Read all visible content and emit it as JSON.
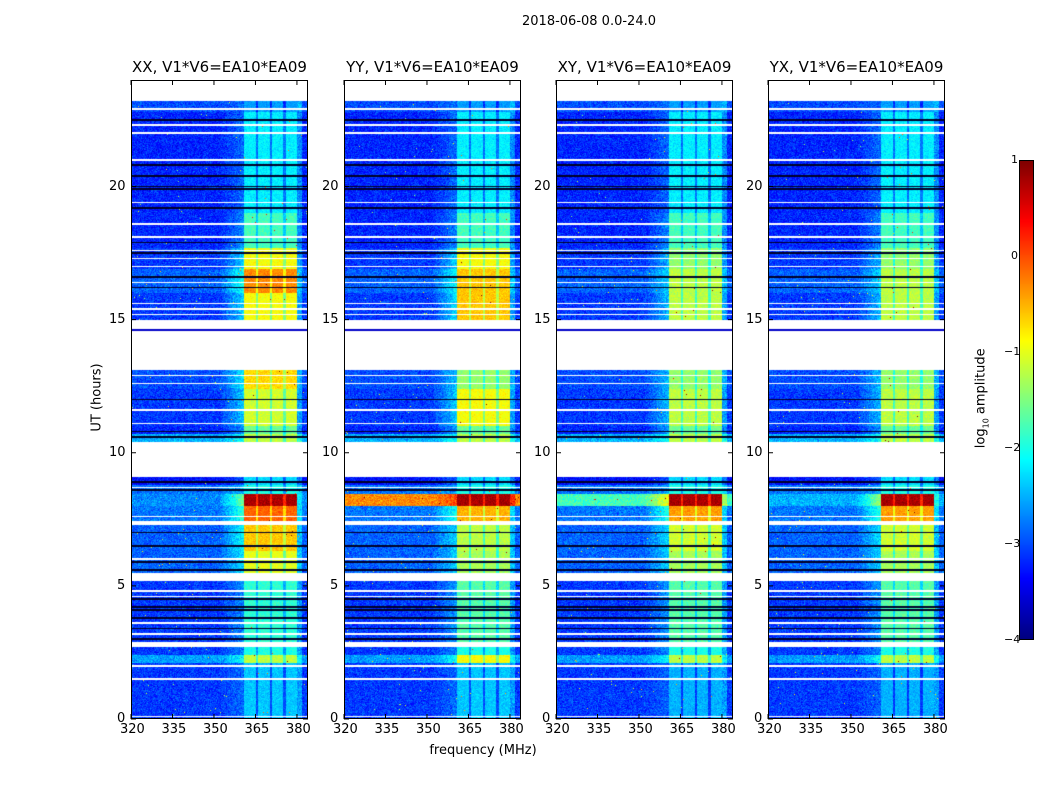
{
  "figure_title": "2018-06-08 0.0-24.0",
  "chart_data": {
    "type": "heatmap",
    "title": "2018-06-08 0.0-24.0",
    "xlabel": "frequency (MHz)",
    "ylabel": "UT (hours)",
    "xlim": [
      320,
      384
    ],
    "ylim": [
      0,
      24
    ],
    "xticks": [
      320,
      335,
      350,
      365,
      380
    ],
    "yticks": [
      0,
      5,
      10,
      15,
      20
    ],
    "colorbar": {
      "label_prefix": "log",
      "label_sub": "10",
      "label_suffix": " amplitude",
      "range": [
        -4,
        1
      ],
      "ticks": [
        1,
        0,
        -1,
        -2,
        -3,
        -4
      ],
      "colormap": "jet"
    },
    "panels": [
      {
        "title": "XX, V1*V6=EA10*EA09",
        "idx": 0
      },
      {
        "title": "YY, V1*V6=EA10*EA09",
        "idx": 1
      },
      {
        "title": "XY, V1*V6=EA10*EA09",
        "idx": 2
      },
      {
        "title": "YX, V1*V6=EA10*EA09",
        "idx": 3
      }
    ],
    "band_mhz": [
      361,
      380
    ],
    "band_gaps_mhz": [
      365.6,
      370.6,
      375.6
    ],
    "segments_hours": [
      {
        "t": [
          0,
          2.1
        ],
        "bg": -3.1,
        "band": [
          -2.4,
          -2.4,
          -2.5,
          -2.5
        ]
      },
      {
        "t": [
          2.1,
          2.4
        ],
        "bg": -2.6,
        "band": [
          -1.2,
          -0.9,
          -1.2,
          -1.2
        ]
      },
      {
        "t": [
          2.4,
          2.7
        ],
        "bg": -3.1,
        "band": [
          -2.0,
          -2.0,
          -2.0,
          -2.0
        ]
      },
      {
        "t": [
          2.7,
          2.9
        ],
        "blank": true
      },
      {
        "t": [
          2.9,
          5.2
        ],
        "bg": -3.1,
        "band": [
          -1.9,
          -1.7,
          -1.7,
          -1.7
        ]
      },
      {
        "t": [
          5.2,
          5.5
        ],
        "blank": true
      },
      {
        "t": [
          5.5,
          6.3
        ],
        "bg": -2.9,
        "band": [
          -1.0,
          -1.3,
          -1.3,
          -1.3
        ]
      },
      {
        "t": [
          6.3,
          7.3
        ],
        "bg": -2.9,
        "band": [
          -0.6,
          -1.2,
          -1.1,
          -1.1
        ]
      },
      {
        "t": [
          7.3,
          7.45
        ],
        "blank": true
      },
      {
        "t": [
          7.45,
          8.0
        ],
        "bg": -2.8,
        "band": [
          -0.1,
          -0.5,
          -0.4,
          -0.4
        ]
      },
      {
        "t": [
          8.0,
          8.45
        ],
        "bg": -2.8,
        "bg_override": [
          -2.7,
          -0.3,
          -1.8,
          -2.5
        ],
        "band": [
          0.8,
          0.8,
          0.8,
          0.8
        ]
      },
      {
        "t": [
          8.45,
          8.8
        ],
        "bg": -2.8,
        "band": [
          -2.0,
          -2.0,
          -2.0,
          -2.0
        ]
      },
      {
        "t": [
          8.8,
          9.1
        ],
        "bg": -3.3,
        "band": [
          -2.3,
          -2.3,
          -2.3,
          -2.3
        ]
      },
      {
        "t": [
          9.1,
          10.4
        ],
        "blank": true
      },
      {
        "t": [
          10.4,
          10.7
        ],
        "bg": -2.5,
        "band": [
          -1.2,
          -1.2,
          -1.2,
          -1.2
        ]
      },
      {
        "t": [
          10.7,
          11.0
        ],
        "bg": -3.2,
        "band": [
          -1.6,
          -1.6,
          -1.6,
          -1.6
        ]
      },
      {
        "t": [
          11.0,
          12.4
        ],
        "bg": -3.1,
        "band": [
          -1.1,
          -0.9,
          -1.2,
          -1.2
        ]
      },
      {
        "t": [
          12.4,
          13.1
        ],
        "bg": -3.0,
        "band": [
          -0.7,
          -1.4,
          -1.4,
          -1.4
        ]
      },
      {
        "t": [
          13.1,
          15.0
        ],
        "blank": true
      },
      {
        "t": [
          15.0,
          16.0
        ],
        "bg": -3.1,
        "band": [
          -0.9,
          -0.6,
          -1.2,
          -1.2
        ]
      },
      {
        "t": [
          16.0,
          16.9
        ],
        "bg": -2.9,
        "band": [
          -0.3,
          -0.6,
          -1.2,
          -1.2
        ]
      },
      {
        "t": [
          16.9,
          17.7
        ],
        "bg": -3.1,
        "band": [
          -0.9,
          -0.9,
          -1.4,
          -1.4
        ]
      },
      {
        "t": [
          17.7,
          19.0
        ],
        "bg": -3.2,
        "band": [
          -1.8,
          -1.8,
          -1.8,
          -1.8
        ]
      },
      {
        "t": [
          19.0,
          22.8
        ],
        "bg": -3.2,
        "band": [
          -2.2,
          -2.2,
          -2.2,
          -2.2
        ]
      },
      {
        "t": [
          22.8,
          23.2
        ],
        "bg": -3.0,
        "band": [
          -2.6,
          -2.6,
          -2.6,
          -2.6
        ]
      },
      {
        "t": [
          23.2,
          24
        ],
        "blank": true
      }
    ],
    "white_lines_hours": [
      0.1,
      1.5,
      2.0,
      3.2,
      3.6,
      4.6,
      4.8,
      6.0,
      7.6,
      8.7,
      11.1,
      11.6,
      12.6,
      12.9,
      13.2,
      15.2,
      15.4,
      15.6,
      16.4,
      17.0,
      17.3,
      17.6,
      18.1,
      18.6,
      19.4,
      21.0,
      22.0,
      22.3,
      22.9
    ],
    "black_lines_hours": [
      3.0,
      3.4,
      3.8,
      4.1,
      4.2,
      4.5,
      5.6,
      5.9,
      6.5,
      7.0,
      8.6,
      8.9,
      10.6,
      10.8,
      12.0,
      14.6,
      16.2,
      16.6,
      17.5,
      17.9,
      19.2,
      19.9,
      20.0,
      20.4,
      20.8,
      22.5
    ]
  }
}
